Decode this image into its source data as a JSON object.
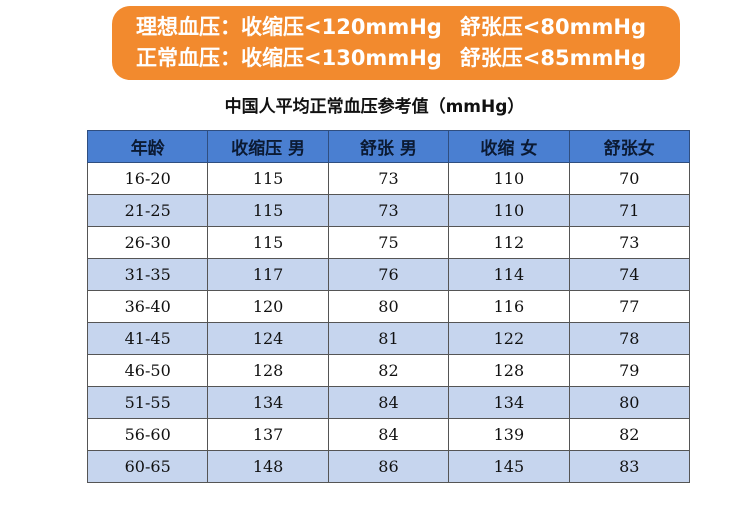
{
  "banner": {
    "line1": {
      "label": "理想血压：",
      "systolic": "收缩压<120mmHg",
      "diastolic": "舒张压<80mmHg"
    },
    "line2": {
      "label": "正常血压：",
      "systolic": "收缩压<130mmHg",
      "diastolic": "舒张压<85mmHg"
    },
    "bg_color": "#f28a2e"
  },
  "table": {
    "title": "中国人平均正常血压参考值（mmHg）",
    "header_color": "#4a7fd1",
    "stripe_color": "#c6d5ee",
    "headers": [
      "年龄",
      "收缩压 男",
      "舒张 男",
      "收缩 女",
      "舒张女"
    ],
    "rows": [
      [
        "16-20",
        "115",
        "73",
        "110",
        "70"
      ],
      [
        "21-25",
        "115",
        "73",
        "110",
        "71"
      ],
      [
        "26-30",
        "115",
        "75",
        "112",
        "73"
      ],
      [
        "31-35",
        "117",
        "76",
        "114",
        "74"
      ],
      [
        "36-40",
        "120",
        "80",
        "116",
        "77"
      ],
      [
        "41-45",
        "124",
        "81",
        "122",
        "78"
      ],
      [
        "46-50",
        "128",
        "82",
        "128",
        "79"
      ],
      [
        "51-55",
        "134",
        "84",
        "134",
        "80"
      ],
      [
        "56-60",
        "137",
        "84",
        "139",
        "82"
      ],
      [
        "60-65",
        "148",
        "86",
        "145",
        "83"
      ]
    ]
  }
}
